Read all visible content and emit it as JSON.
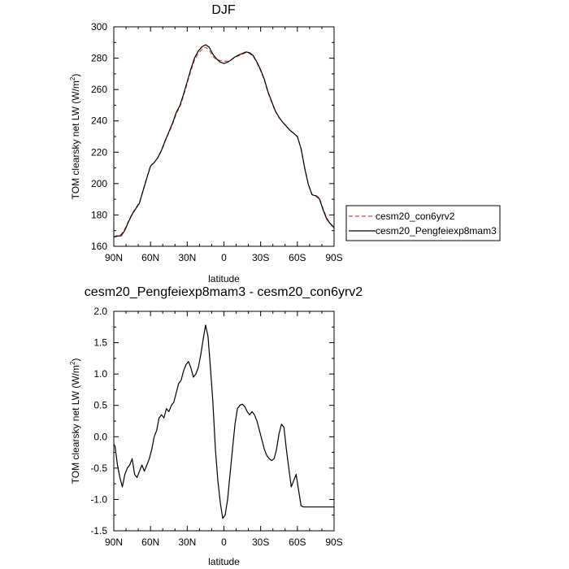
{
  "chart_data": [
    {
      "type": "line",
      "title": "DJF",
      "xlabel": "latitude",
      "ylabel": "TOM clearsky net LW (W/m",
      "ylabel_sup": "2",
      "ylabel_close": ")",
      "xlim": [
        90,
        -90
      ],
      "ylim": [
        160,
        300
      ],
      "xticks": [
        {
          "value": 90,
          "label": "90N"
        },
        {
          "value": 60,
          "label": "60N"
        },
        {
          "value": 30,
          "label": "30N"
        },
        {
          "value": 0,
          "label": "0"
        },
        {
          "value": -30,
          "label": "30S"
        },
        {
          "value": -60,
          "label": "60S"
        },
        {
          "value": -90,
          "label": "90S"
        }
      ],
      "yticks": [
        {
          "value": 160,
          "label": "160"
        },
        {
          "value": 180,
          "label": "180"
        },
        {
          "value": 200,
          "label": "200"
        },
        {
          "value": 220,
          "label": "220"
        },
        {
          "value": 240,
          "label": "240"
        },
        {
          "value": 260,
          "label": "260"
        },
        {
          "value": 280,
          "label": "280"
        },
        {
          "value": 300,
          "label": "300"
        }
      ],
      "legend_position": "right",
      "series": [
        {
          "name": "cesm20_con6yrv2",
          "color": "#e8403a",
          "dash": "dashed",
          "x": [
            90,
            87,
            84,
            81,
            78,
            75,
            72,
            69,
            66,
            63,
            60,
            57,
            54,
            51,
            48,
            45,
            42,
            39,
            36,
            33,
            30,
            27,
            24,
            21,
            18,
            15,
            12,
            9,
            6,
            3,
            0,
            -3,
            -6,
            -9,
            -12,
            -15,
            -18,
            -21,
            -24,
            -27,
            -30,
            -33,
            -36,
            -39,
            -42,
            -45,
            -48,
            -51,
            -54,
            -57,
            -60,
            -63,
            -66,
            -69,
            -72,
            -75,
            -78,
            -81,
            -84,
            -87,
            -90
          ],
          "y": [
            166,
            167,
            167.5,
            171,
            176,
            181,
            184.5,
            188,
            196,
            204,
            211.5,
            213.5,
            216.5,
            221,
            227,
            232.5,
            238,
            244.5,
            249,
            256,
            264,
            272,
            279,
            283,
            285.5,
            287,
            285,
            281,
            279,
            278.5,
            278,
            278,
            279,
            280.5,
            281.5,
            282.5,
            283.5,
            283,
            281,
            277,
            272,
            266,
            258,
            252,
            246,
            242,
            239,
            236.5,
            234,
            232,
            230,
            222.5,
            210,
            199.5,
            193,
            192.5,
            191,
            184,
            178,
            174.5,
            172
          ]
        },
        {
          "name": "cesm20_Pengfeiexp8mam3",
          "color": "#000000",
          "dash": "solid",
          "x": [
            90,
            87,
            84,
            81,
            78,
            75,
            72,
            69,
            66,
            63,
            60,
            57,
            54,
            51,
            48,
            45,
            42,
            39,
            36,
            33,
            30,
            27,
            24,
            21,
            18,
            15,
            12,
            9,
            6,
            3,
            0,
            -3,
            -6,
            -9,
            -12,
            -15,
            -18,
            -21,
            -24,
            -27,
            -30,
            -33,
            -36,
            -39,
            -42,
            -45,
            -48,
            -51,
            -54,
            -57,
            -60,
            -63,
            -66,
            -69,
            -72,
            -75,
            -78,
            -81,
            -84,
            -87,
            -90
          ],
          "y": [
            165.9,
            166.5,
            166.7,
            170.2,
            175.6,
            180.5,
            184,
            187.6,
            195.6,
            203.6,
            211.2,
            213.4,
            216.6,
            221.3,
            227.4,
            233,
            238.6,
            245.3,
            249.8,
            257,
            265,
            273.1,
            280.3,
            284.5,
            287.2,
            288.6,
            287,
            282.5,
            279.5,
            277.5,
            276.6,
            277.4,
            279,
            280.8,
            282,
            283,
            284,
            283.5,
            281.6,
            277.5,
            272.5,
            266.5,
            258.5,
            252.4,
            246.4,
            242.3,
            239.2,
            236.6,
            234,
            232,
            230,
            222.2,
            209.7,
            199.3,
            192.8,
            192.2,
            190.3,
            183.4,
            177.3,
            174.2,
            171.9
          ]
        }
      ]
    },
    {
      "type": "line",
      "title": "cesm20_Pengfeiexp8mam3 - cesm20_con6yrv2",
      "xlabel": "latitude",
      "ylabel": "TOM clearsky net LW (W/m",
      "ylabel_sup": "2",
      "ylabel_close": ")",
      "xlim": [
        90,
        -90
      ],
      "ylim": [
        -1.5,
        2.0
      ],
      "xticks": [
        {
          "value": 90,
          "label": "90N"
        },
        {
          "value": 60,
          "label": "60N"
        },
        {
          "value": 30,
          "label": "30N"
        },
        {
          "value": 0,
          "label": "0"
        },
        {
          "value": -30,
          "label": "30S"
        },
        {
          "value": -60,
          "label": "60S"
        },
        {
          "value": -90,
          "label": "90S"
        }
      ],
      "yticks": [
        {
          "value": -1.5,
          "label": "-1.5"
        },
        {
          "value": -1.0,
          "label": "-1.0"
        },
        {
          "value": -0.5,
          "label": "-0.5"
        },
        {
          "value": 0.0,
          "label": "0.0"
        },
        {
          "value": 0.5,
          "label": "0.5"
        },
        {
          "value": 1.0,
          "label": "1.0"
        },
        {
          "value": 1.5,
          "label": "1.5"
        },
        {
          "value": 2.0,
          "label": "2.0"
        }
      ],
      "series": [
        {
          "name": "",
          "color": "#000000",
          "dash": "solid",
          "x": [
            90,
            89,
            87,
            85,
            83,
            81,
            79,
            77,
            75,
            73,
            71,
            69,
            67,
            65,
            63,
            61,
            59,
            57,
            55,
            53,
            51,
            49,
            47,
            45,
            43,
            41,
            39,
            37,
            35,
            33,
            31,
            29,
            27,
            25,
            23,
            21,
            19,
            17,
            15,
            13,
            11,
            9,
            7,
            5,
            3,
            1,
            -1,
            -3,
            -5,
            -7,
            -9,
            -11,
            -13,
            -15,
            -17,
            -19,
            -21,
            -23,
            -25,
            -27,
            -29,
            -31,
            -33,
            -35,
            -37,
            -39,
            -41,
            -43,
            -45,
            -47,
            -49,
            -51,
            -53,
            -55,
            -57,
            -59,
            -61,
            -63,
            -65,
            -67,
            -69,
            -71,
            -73,
            -75,
            -77,
            -79,
            -81,
            -83,
            -85,
            -87,
            -89,
            -90
          ],
          "y": [
            -0.12,
            -0.15,
            -0.45,
            -0.65,
            -0.8,
            -0.6,
            -0.5,
            -0.45,
            -0.35,
            -0.6,
            -0.65,
            -0.55,
            -0.45,
            -0.55,
            -0.45,
            -0.35,
            -0.2,
            0.0,
            0.1,
            0.3,
            0.35,
            0.3,
            0.45,
            0.4,
            0.5,
            0.55,
            0.7,
            0.85,
            0.9,
            1.05,
            1.15,
            1.2,
            1.1,
            0.95,
            1.0,
            1.1,
            1.3,
            1.55,
            1.78,
            1.6,
            1.1,
            0.55,
            -0.2,
            -0.7,
            -1.05,
            -1.3,
            -1.25,
            -1.0,
            -0.6,
            -0.2,
            0.2,
            0.45,
            0.5,
            0.52,
            0.48,
            0.4,
            0.35,
            0.4,
            0.35,
            0.25,
            0.1,
            -0.05,
            -0.2,
            -0.3,
            -0.35,
            -0.38,
            -0.35,
            -0.2,
            0.05,
            0.2,
            0.15,
            -0.2,
            -0.5,
            -0.8,
            -0.7,
            -0.6,
            -0.85,
            -1.1,
            -1.12,
            -1.12,
            -1.12,
            -1.12,
            -1.12,
            -1.12,
            -1.12,
            -1.12,
            -1.12,
            -1.12,
            -1.12,
            -1.12,
            -1.12,
            -1.12
          ]
        }
      ]
    }
  ]
}
